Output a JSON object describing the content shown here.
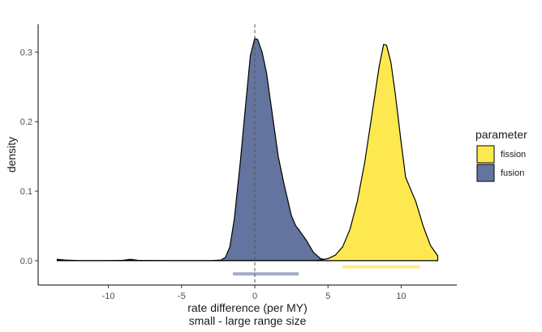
{
  "chart_data": {
    "type": "area",
    "xlabel": "rate difference (per MY)",
    "xlabel_line2": "small - large range size",
    "ylabel": "density",
    "xlim": [
      -14.8,
      13.8
    ],
    "ylim": [
      -0.035,
      0.34
    ],
    "xticks": [
      -10,
      -5,
      0,
      5,
      10
    ],
    "yticks": [
      0.0,
      0.1,
      0.2,
      0.3
    ],
    "ytick_labels": [
      "0.0",
      "0.1",
      "0.2",
      "0.3"
    ],
    "xtick_labels": [
      "-10",
      "-5",
      "0",
      "5",
      "10"
    ],
    "reference_line_x": 0,
    "legend": {
      "title": "parameter",
      "placement": "right"
    },
    "series": [
      {
        "name": "fission",
        "color": "#FDE94F",
        "interval": {
          "low": 6.0,
          "high": 11.3,
          "y": -0.009,
          "color": "#FCEB8A"
        },
        "x": [
          -13.5,
          -12.0,
          -10.0,
          -8.5,
          -8.0,
          -6.0,
          -4.0,
          -2.0,
          0.0,
          2.0,
          3.0,
          4.0,
          4.5,
          5.0,
          5.5,
          6.0,
          6.5,
          7.0,
          7.5,
          8.0,
          8.5,
          8.8,
          9.0,
          9.3,
          9.6,
          10.0,
          10.3,
          10.6,
          11.0,
          11.5,
          12.0,
          12.5
        ],
        "y": [
          0.0,
          0.0,
          0.0,
          0.0,
          0.0,
          0.0,
          0.0,
          0.0,
          0.0,
          0.0,
          0.0,
          0.0,
          0.001,
          0.003,
          0.008,
          0.02,
          0.045,
          0.085,
          0.14,
          0.21,
          0.28,
          0.311,
          0.31,
          0.285,
          0.24,
          0.17,
          0.12,
          0.105,
          0.085,
          0.05,
          0.022,
          0.007
        ]
      },
      {
        "name": "fusion",
        "color": "#63749E",
        "interval": {
          "low": -1.5,
          "high": 3.0,
          "y": -0.019,
          "color": "#A2ACC5"
        },
        "x": [
          -13.5,
          -13.0,
          -12.0,
          -10.0,
          -9.0,
          -8.5,
          -8.0,
          -6.0,
          -4.0,
          -3.0,
          -2.3,
          -2.0,
          -1.7,
          -1.4,
          -1.0,
          -0.6,
          -0.3,
          0.0,
          0.2,
          0.5,
          0.8,
          1.0,
          1.3,
          1.6,
          2.0,
          2.5,
          2.8,
          3.0,
          3.5,
          4.0,
          4.5,
          5.0,
          5.5,
          6.0,
          7.0,
          8.0,
          10.0,
          12.5
        ],
        "y": [
          0.002,
          0.001,
          0.0,
          0.0,
          0.0005,
          0.002,
          0.0005,
          0.0,
          0.0,
          0.0,
          0.001,
          0.005,
          0.02,
          0.06,
          0.14,
          0.23,
          0.295,
          0.32,
          0.318,
          0.3,
          0.27,
          0.24,
          0.195,
          0.15,
          0.11,
          0.065,
          0.05,
          0.045,
          0.03,
          0.012,
          0.003,
          0.0005,
          0.0,
          0.0,
          0.0,
          0.0,
          0.0,
          0.0
        ]
      }
    ]
  }
}
